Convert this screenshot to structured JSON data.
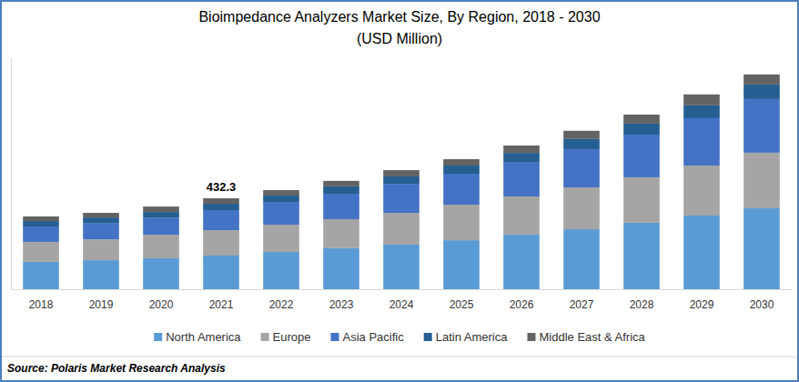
{
  "chart_data": {
    "type": "bar",
    "stacked": true,
    "title": "Bioimpedance Analyzers Market Size, By Region, 2018 - 2030",
    "subtitle": "(USD Million)",
    "source": "Source: Polaris Market Research Analysis",
    "categories": [
      "2018",
      "2019",
      "2020",
      "2021",
      "2022",
      "2023",
      "2024",
      "2025",
      "2026",
      "2027",
      "2028",
      "2029",
      "2030"
    ],
    "series": [
      {
        "name": "North America",
        "color": "#5b9bd5",
        "values": [
          130,
          138,
          147,
          160,
          177,
          195,
          212,
          233,
          259,
          285,
          316,
          350,
          385
        ]
      },
      {
        "name": "Europe",
        "color": "#a5a5a5",
        "values": [
          95,
          99,
          112,
          121,
          130,
          138,
          151,
          169,
          182,
          199,
          216,
          238,
          264
        ]
      },
      {
        "name": "Asia Pacific",
        "color": "#4472c4",
        "values": [
          73,
          78,
          82,
          95,
          108,
          121,
          138,
          147,
          164,
          182,
          203,
          225,
          255
        ]
      },
      {
        "name": "Latin America",
        "color": "#255e91",
        "values": [
          26,
          26,
          26,
          30.3,
          30,
          35,
          35,
          39,
          43,
          48,
          52,
          61,
          69
        ]
      },
      {
        "name": "Middle East & Africa",
        "color": "#636363",
        "values": [
          22,
          22,
          26,
          26,
          26,
          26,
          30,
          30,
          35,
          39,
          43,
          52,
          48
        ]
      }
    ],
    "annotations": [
      {
        "x": "2021",
        "y": 432.3,
        "text": "432.3"
      }
    ],
    "ylim": [
      0,
      1100
    ],
    "yticks": [],
    "grid": false,
    "legend": "bottom",
    "tick_labels": "x",
    "data_labels": false
  }
}
